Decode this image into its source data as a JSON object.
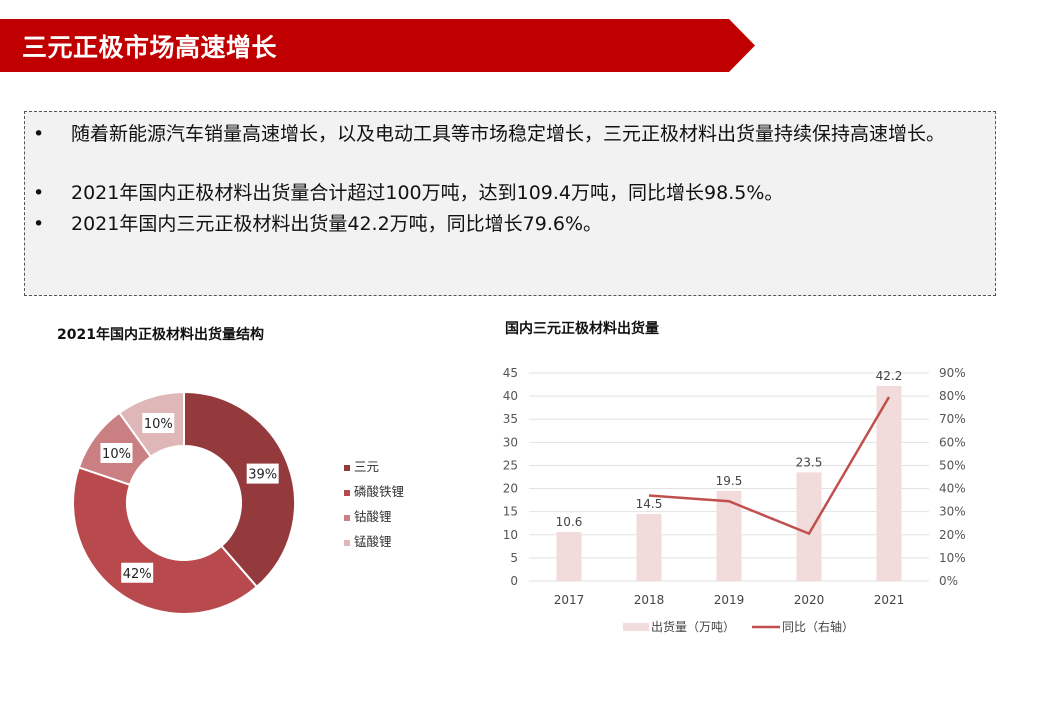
{
  "header": {
    "title": "三元正极市场高速增长",
    "color": "#c00000"
  },
  "bullets": {
    "marker": "•",
    "items": [
      "随着新能源汽车销量高速增长，以及电动工具等市场稳定增长，三元正极材料出货量持续保持高速增长。",
      "2021年国内正极材料出货量合计超过100万吨，达到109.4万吨，同比增长98.5%。",
      "2021年国内三元正极材料出货量42.2万吨，同比增长79.6%。"
    ]
  },
  "chart_data": [
    {
      "type": "pie",
      "donut": true,
      "title": "2021年国内正极材料出货量结构",
      "categories": [
        "三元",
        "磷酸铁锂",
        "钴酸锂",
        "锰酸锂"
      ],
      "values": [
        39,
        42,
        10,
        10
      ],
      "labels": [
        "39%",
        "42%",
        "10%",
        "10%"
      ],
      "colors": [
        "#943a3c",
        "#b84a4d",
        "#ca7f82",
        "#dfb7b8"
      ],
      "legend_position": "right"
    },
    {
      "type": "bar",
      "title": "国内三元正极材料出货量",
      "categories": [
        "2017",
        "2018",
        "2019",
        "2020",
        "2021"
      ],
      "series": [
        {
          "name": "出货量（万吨）",
          "type": "bar",
          "axis": "left",
          "values": [
            10.6,
            14.5,
            19.5,
            23.5,
            42.2
          ],
          "color": "#f2dbdb"
        },
        {
          "name": "同比（右轴）",
          "type": "line",
          "axis": "right",
          "values": [
            null,
            37,
            34.5,
            20.5,
            79.6
          ],
          "color": "#c0504d"
        }
      ],
      "ylim": [
        0,
        45
      ],
      "yticks": [
        "0",
        "5",
        "10",
        "15",
        "20",
        "25",
        "30",
        "35",
        "40",
        "45"
      ],
      "y2lim": [
        0,
        90
      ],
      "y2ticks": [
        "0%",
        "10%",
        "20%",
        "30%",
        "40%",
        "50%",
        "60%",
        "70%",
        "80%",
        "90%"
      ],
      "grid": true,
      "legend_position": "bottom"
    }
  ]
}
